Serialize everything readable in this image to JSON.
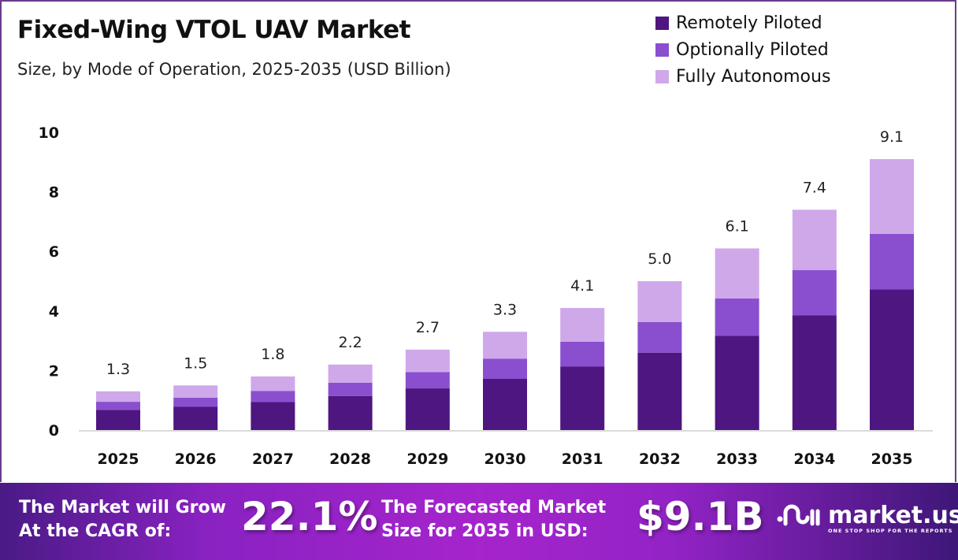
{
  "header": {
    "title": "Fixed-Wing VTOL UAV Market",
    "subtitle": "Size, by Mode of Operation, 2025-2035 (USD Billion)"
  },
  "legend": [
    {
      "label": "Remotely Piloted",
      "color": "#4e1680"
    },
    {
      "label": "Optionally Piloted",
      "color": "#8a4fcf"
    },
    {
      "label": "Fully Autonomous",
      "color": "#cfa8ea"
    }
  ],
  "chart_data": {
    "type": "bar",
    "stacked": true,
    "title": "Fixed-Wing VTOL UAV Market",
    "subtitle": "Size, by Mode of Operation, 2025-2035 (USD Billion)",
    "xlabel": "",
    "ylabel": "",
    "ylim": [
      0,
      10
    ],
    "yticks": [
      0,
      2,
      4,
      6,
      8,
      10
    ],
    "grid": false,
    "legend_position": "top-right",
    "categories": [
      "2025",
      "2026",
      "2027",
      "2028",
      "2029",
      "2030",
      "2031",
      "2032",
      "2033",
      "2034",
      "2035"
    ],
    "series": [
      {
        "name": "Remotely Piloted",
        "color": "#4e1680",
        "values": [
          0.68,
          0.78,
          0.94,
          1.14,
          1.4,
          1.72,
          2.13,
          2.6,
          3.17,
          3.85,
          4.73
        ]
      },
      {
        "name": "Optionally Piloted",
        "color": "#8a4fcf",
        "values": [
          0.27,
          0.31,
          0.37,
          0.45,
          0.55,
          0.68,
          0.84,
          1.03,
          1.25,
          1.52,
          1.86
        ]
      },
      {
        "name": "Fully Autonomous",
        "color": "#cfa8ea",
        "values": [
          0.35,
          0.41,
          0.49,
          0.61,
          0.75,
          0.9,
          1.13,
          1.37,
          1.68,
          2.03,
          2.51
        ]
      }
    ],
    "totals": [
      1.3,
      1.5,
      1.8,
      2.2,
      2.7,
      3.3,
      4.1,
      5.0,
      6.1,
      7.4,
      9.1
    ],
    "total_labels": [
      "1.3",
      "1.5",
      "1.8",
      "2.2",
      "2.7",
      "3.3",
      "4.1",
      "5.0",
      "6.1",
      "7.4",
      "9.1"
    ]
  },
  "footer": {
    "cagr_label_line1": "The Market will Grow",
    "cagr_label_line2": "At the CAGR of:",
    "cagr_value": "22.1%",
    "size_label_line1": "The Forecasted Market",
    "size_label_line2": "Size for 2035 in USD:",
    "size_value": "$9.1B",
    "brand_name": "market.us",
    "brand_tagline": "ONE STOP SHOP FOR THE REPORTS",
    "brand_icon": "market-us-logo-icon"
  }
}
